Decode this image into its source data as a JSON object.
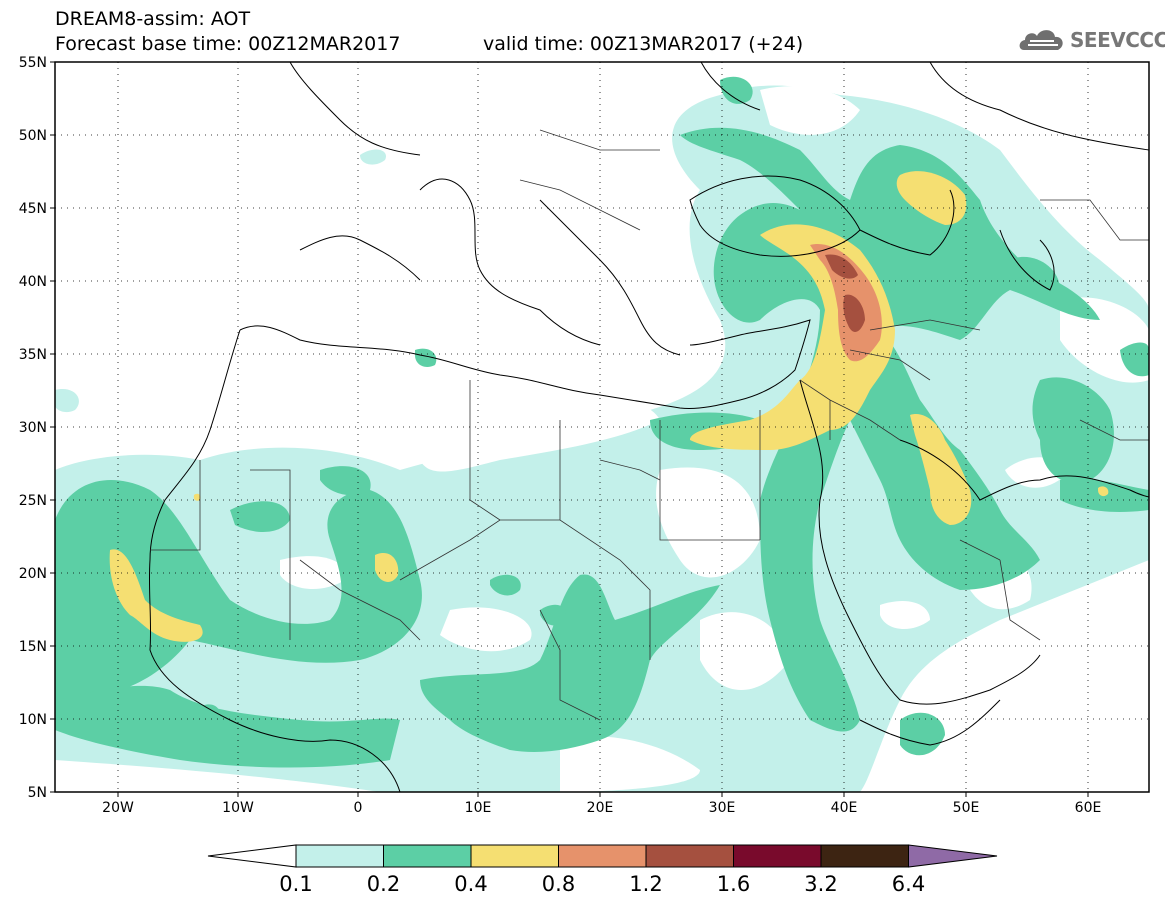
{
  "title": {
    "line1": "DREAM8-assim: AOT",
    "line2": "Forecast base time: 00Z12MAR2017",
    "valid": "valid time: 00Z13MAR2017 (+24)"
  },
  "logo": {
    "text": "SEEVCCC",
    "icon": "cloud-logo-icon"
  },
  "map": {
    "lat_labels": [
      "55N",
      "50N",
      "45N",
      "40N",
      "35N",
      "30N",
      "25N",
      "20N",
      "15N",
      "10N",
      "5N"
    ],
    "lon_labels": [
      "20W",
      "10W",
      "0",
      "10E",
      "20E",
      "30E",
      "40E",
      "50E",
      "60E"
    ],
    "lat_range": [
      5,
      55
    ],
    "lon_range": [
      -25,
      65
    ],
    "grid": "dotted"
  },
  "colorbar": {
    "labels": [
      "0.1",
      "0.2",
      "0.4",
      "0.8",
      "1.2",
      "1.6",
      "3.2",
      "6.4"
    ],
    "colors": [
      "#ffffff",
      "#c3f0ea",
      "#5ccfa5",
      "#f5df72",
      "#e6926b",
      "#a5503f",
      "#790a2c",
      "#3d2412",
      "#8f6aa6"
    ]
  }
}
